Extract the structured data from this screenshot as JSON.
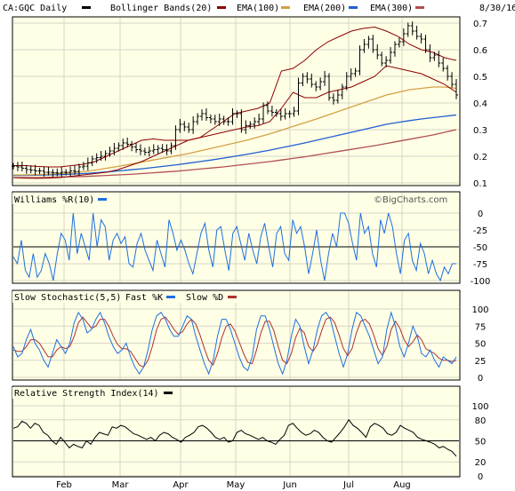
{
  "header": {
    "symbol": "CA:GQC Daily",
    "boll": "Bollinger Bands(20)",
    "ema100": "EMA(100)",
    "ema200": "EMA(200)",
    "ema300": "EMA(300)",
    "date": "8/30/16"
  },
  "watermark": "©BigCharts.com",
  "colors": {
    "price": "#000000",
    "boll": "#8b0000",
    "ema100": "#d4a046",
    "ema200": "#1f5fd0",
    "ema300": "#b05050",
    "wr": "#1e6fe0",
    "fastk": "#1e6fe0",
    "slowd": "#b03030",
    "rsi": "#000000",
    "panel_bg": "#ffffe6",
    "grid": "#d6d6c6"
  },
  "months": [
    "Feb",
    "Mar",
    "Apr",
    "May",
    "Jun",
    "Jul",
    "Aug"
  ],
  "chart_data": [
    {
      "type": "line",
      "panel": "price",
      "yticks": [
        "0.7",
        "0.6",
        "0.5",
        "0.4",
        "0.3",
        "0.2",
        "0.1"
      ],
      "ylim": [
        0.1,
        0.75
      ],
      "series": [
        {
          "name": "CA:GQC Daily",
          "style": "ohlc",
          "values": [
            0.163,
            0.16,
            0.155,
            0.15,
            0.148,
            0.145,
            0.145,
            0.14,
            0.14,
            0.138,
            0.137,
            0.14,
            0.14,
            0.145,
            0.143,
            0.16,
            0.163,
            0.175,
            0.19,
            0.195,
            0.2,
            0.21,
            0.22,
            0.23,
            0.24,
            0.25,
            0.245,
            0.235,
            0.225,
            0.22,
            0.215,
            0.22,
            0.225,
            0.23,
            0.225,
            0.22,
            0.24,
            0.3,
            0.32,
            0.31,
            0.3,
            0.33,
            0.35,
            0.36,
            0.345,
            0.34,
            0.33,
            0.34,
            0.33,
            0.33,
            0.36,
            0.36,
            0.3,
            0.315,
            0.32,
            0.33,
            0.34,
            0.39,
            0.37,
            0.365,
            0.36,
            0.35,
            0.36,
            0.36,
            0.37,
            0.475,
            0.5,
            0.49,
            0.47,
            0.46,
            0.48,
            0.5,
            0.42,
            0.41,
            0.43,
            0.46,
            0.5,
            0.51,
            0.52,
            0.6,
            0.62,
            0.64,
            0.6,
            0.58,
            0.55,
            0.56,
            0.59,
            0.62,
            0.63,
            0.66,
            0.69,
            0.67,
            0.65,
            0.64,
            0.6,
            0.57,
            0.58,
            0.55,
            0.53,
            0.5,
            0.47,
            0.43
          ]
        },
        {
          "name": "Bollinger Bands(20) upper",
          "values": [
            0.165,
            0.165,
            0.162,
            0.16,
            0.16,
            0.165,
            0.17,
            0.18,
            0.2,
            0.22,
            0.24,
            0.26,
            0.265,
            0.26,
            0.26,
            0.26,
            0.27,
            0.3,
            0.33,
            0.36,
            0.37,
            0.38,
            0.4,
            0.52,
            0.53,
            0.56,
            0.6,
            0.63,
            0.65,
            0.67,
            0.68,
            0.685,
            0.67,
            0.65,
            0.62,
            0.6,
            0.59,
            0.57,
            0.56
          ]
        },
        {
          "name": "Bollinger Bands(20) lower",
          "values": [
            0.12,
            0.118,
            0.117,
            0.118,
            0.12,
            0.125,
            0.13,
            0.135,
            0.14,
            0.15,
            0.165,
            0.18,
            0.2,
            0.22,
            0.24,
            0.26,
            0.27,
            0.28,
            0.29,
            0.3,
            0.31,
            0.315,
            0.33,
            0.38,
            0.44,
            0.42,
            0.42,
            0.44,
            0.45,
            0.46,
            0.48,
            0.5,
            0.54,
            0.53,
            0.52,
            0.51,
            0.49,
            0.47,
            0.44
          ]
        },
        {
          "name": "EMA(100)",
          "values": [
            0.13,
            0.13,
            0.131,
            0.133,
            0.135,
            0.138,
            0.142,
            0.148,
            0.155,
            0.162,
            0.17,
            0.178,
            0.186,
            0.194,
            0.202,
            0.21,
            0.22,
            0.23,
            0.24,
            0.25,
            0.26,
            0.272,
            0.284,
            0.298,
            0.312,
            0.326,
            0.34,
            0.355,
            0.37,
            0.385,
            0.4,
            0.415,
            0.43,
            0.44,
            0.45,
            0.455,
            0.46,
            0.46,
            0.455
          ]
        },
        {
          "name": "EMA(200)",
          "values": [
            0.128,
            0.128,
            0.129,
            0.13,
            0.131,
            0.133,
            0.135,
            0.138,
            0.141,
            0.145,
            0.149,
            0.153,
            0.158,
            0.163,
            0.168,
            0.174,
            0.18,
            0.186,
            0.193,
            0.2,
            0.207,
            0.215,
            0.223,
            0.232,
            0.241,
            0.25,
            0.26,
            0.27,
            0.28,
            0.29,
            0.3,
            0.31,
            0.32,
            0.327,
            0.334,
            0.34,
            0.345,
            0.35,
            0.355
          ]
        },
        {
          "name": "EMA(300)",
          "values": [
            0.12,
            0.12,
            0.12,
            0.121,
            0.122,
            0.123,
            0.124,
            0.126,
            0.128,
            0.13,
            0.132,
            0.135,
            0.138,
            0.141,
            0.144,
            0.148,
            0.152,
            0.156,
            0.16,
            0.165,
            0.17,
            0.175,
            0.18,
            0.186,
            0.192,
            0.198,
            0.205,
            0.212,
            0.219,
            0.226,
            0.233,
            0.24,
            0.248,
            0.256,
            0.264,
            0.272,
            0.28,
            0.29,
            0.3
          ]
        }
      ]
    },
    {
      "type": "line",
      "panel": "williams",
      "title": "Williams %R(10)",
      "yticks": [
        "0",
        "-25",
        "-50",
        "-75",
        "-100"
      ],
      "ylim": [
        -100,
        0
      ],
      "reference": -50,
      "series": [
        {
          "name": "Williams %R(10)",
          "values": [
            -65,
            -75,
            -40,
            -85,
            -95,
            -60,
            -95,
            -85,
            -60,
            -75,
            -100,
            -60,
            -30,
            -40,
            -70,
            0,
            -60,
            -30,
            -50,
            -70,
            0,
            -50,
            -10,
            -20,
            -70,
            -40,
            -30,
            -45,
            -35,
            -75,
            -80,
            -45,
            -30,
            -55,
            -70,
            -85,
            -40,
            -60,
            -80,
            -10,
            -30,
            -55,
            -40,
            -55,
            -75,
            -90,
            -60,
            -30,
            -15,
            -55,
            -80,
            -25,
            -20,
            -55,
            -85,
            -30,
            -20,
            -45,
            -70,
            -30,
            -55,
            -75,
            -35,
            -15,
            -50,
            -80,
            -30,
            -20,
            -60,
            -70,
            -10,
            -30,
            -20,
            -50,
            -90,
            -60,
            -25,
            -70,
            -100,
            -60,
            -30,
            -50,
            0,
            0,
            -15,
            -45,
            -70,
            0,
            -30,
            -20,
            -60,
            -80,
            -10,
            -30,
            0,
            -20,
            -60,
            -90,
            -40,
            -30,
            -70,
            -85,
            -45,
            -60,
            -90,
            -70,
            -90,
            -100,
            -80,
            -90,
            -75,
            -75
          ]
        }
      ]
    },
    {
      "type": "line",
      "panel": "stochastic",
      "title": "Slow Stochastic(5,5)",
      "yticks": [
        "100",
        "75",
        "50",
        "25",
        "0"
      ],
      "ylim": [
        0,
        100
      ],
      "series": [
        {
          "name": "Fast %K",
          "values": [
            45,
            30,
            35,
            55,
            70,
            50,
            40,
            25,
            15,
            35,
            55,
            45,
            35,
            50,
            80,
            95,
            85,
            65,
            70,
            85,
            95,
            80,
            60,
            45,
            35,
            40,
            50,
            30,
            15,
            5,
            15,
            40,
            70,
            90,
            95,
            85,
            70,
            60,
            60,
            75,
            90,
            85,
            60,
            40,
            20,
            5,
            25,
            60,
            85,
            85,
            70,
            50,
            30,
            15,
            10,
            30,
            70,
            90,
            90,
            70,
            45,
            20,
            5,
            25,
            60,
            85,
            75,
            45,
            20,
            40,
            70,
            90,
            95,
            85,
            60,
            35,
            15,
            35,
            70,
            95,
            90,
            75,
            60,
            40,
            20,
            30,
            70,
            95,
            75,
            45,
            30,
            50,
            75,
            60,
            35,
            30,
            40,
            25,
            15,
            30,
            25,
            20,
            30
          ]
        },
        {
          "name": "Slow %D",
          "values": [
            40,
            38,
            38,
            45,
            55,
            55,
            50,
            40,
            30,
            30,
            40,
            45,
            42,
            45,
            60,
            80,
            88,
            80,
            72,
            75,
            85,
            85,
            75,
            60,
            48,
            42,
            42,
            38,
            28,
            18,
            15,
            25,
            45,
            70,
            85,
            88,
            80,
            70,
            63,
            67,
            78,
            85,
            78,
            62,
            42,
            25,
            18,
            35,
            58,
            75,
            78,
            68,
            52,
            35,
            22,
            20,
            40,
            65,
            82,
            82,
            68,
            45,
            25,
            20,
            35,
            58,
            72,
            65,
            45,
            38,
            48,
            68,
            85,
            88,
            80,
            62,
            42,
            32,
            42,
            65,
            82,
            85,
            78,
            62,
            42,
            32,
            45,
            70,
            82,
            72,
            55,
            45,
            52,
            62,
            55,
            42,
            38,
            35,
            28,
            25,
            25,
            23,
            25
          ]
        }
      ]
    },
    {
      "type": "line",
      "panel": "rsi",
      "title": "Relative Strength Index(14)",
      "yticks": [
        "100",
        "80",
        "50",
        "20",
        "0"
      ],
      "ylim": [
        0,
        100
      ],
      "reference": 50,
      "series": [
        {
          "name": "Relative Strength Index(14)",
          "values": [
            68,
            70,
            78,
            75,
            68,
            75,
            72,
            62,
            58,
            50,
            45,
            55,
            48,
            40,
            45,
            42,
            40,
            50,
            45,
            55,
            62,
            60,
            58,
            70,
            68,
            72,
            70,
            65,
            60,
            58,
            55,
            52,
            55,
            50,
            58,
            62,
            60,
            55,
            52,
            48,
            55,
            58,
            62,
            70,
            72,
            68,
            62,
            55,
            52,
            55,
            48,
            50,
            62,
            65,
            60,
            58,
            55,
            52,
            55,
            50,
            48,
            45,
            52,
            58,
            72,
            75,
            68,
            62,
            58,
            60,
            65,
            62,
            55,
            50,
            48,
            55,
            62,
            70,
            80,
            72,
            68,
            62,
            55,
            70,
            75,
            72,
            68,
            60,
            58,
            62,
            72,
            68,
            65,
            62,
            55,
            52,
            50,
            48,
            45,
            40,
            42,
            38,
            35,
            28
          ]
        }
      ]
    }
  ]
}
